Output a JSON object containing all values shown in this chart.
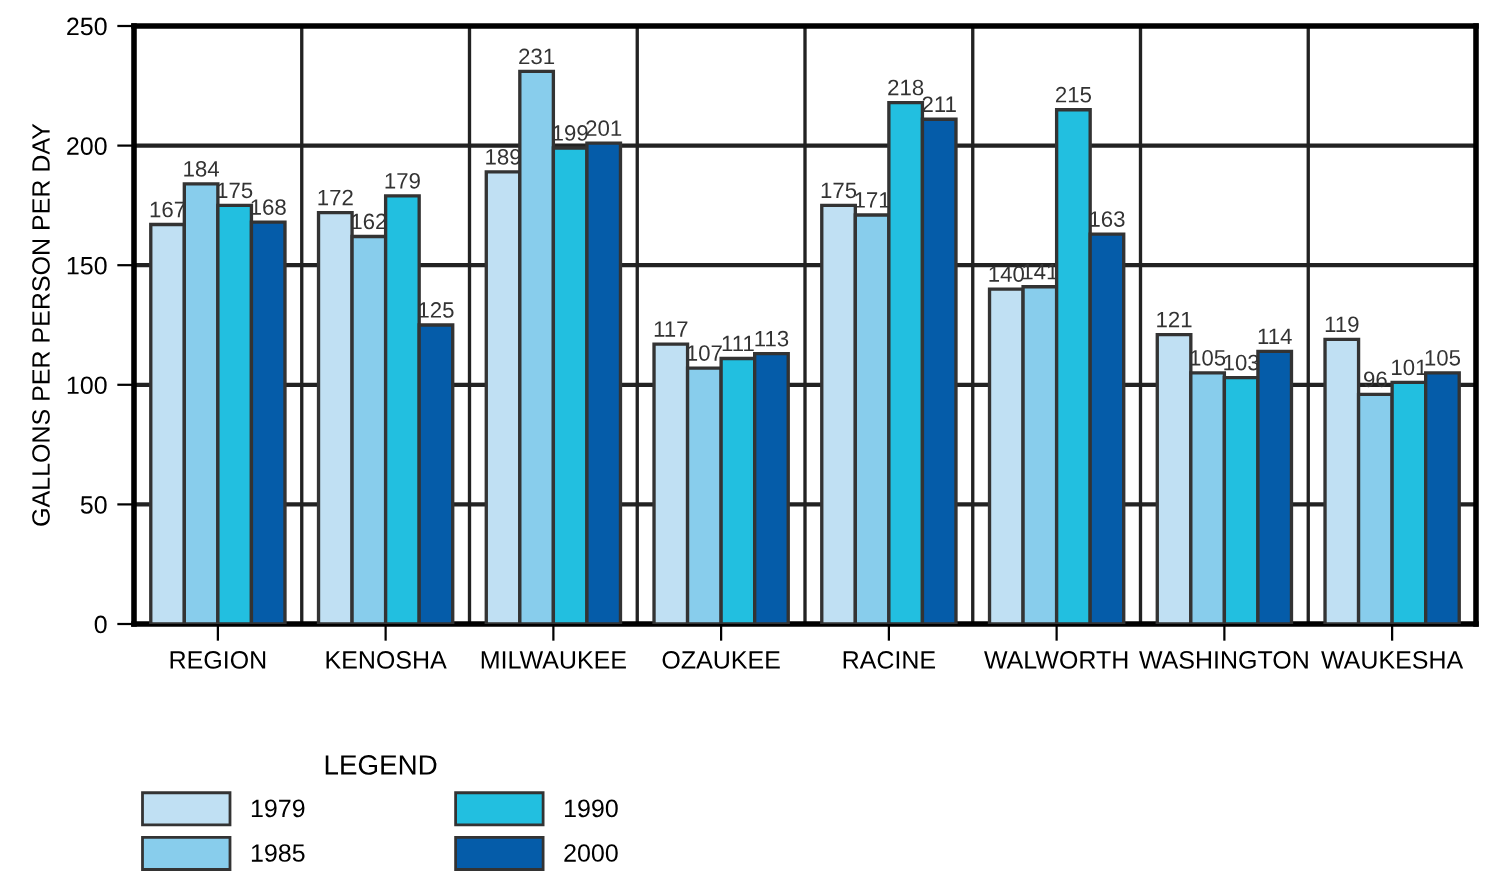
{
  "chart_data": {
    "type": "bar",
    "ylabel": "GALLONS PER PERSON PER DAY",
    "legend_title": "LEGEND",
    "categories": [
      "REGION",
      "KENOSHA",
      "MILWAUKEE",
      "OZAUKEE",
      "RACINE",
      "WALWORTH",
      "WASHINGTON",
      "WAUKESHA"
    ],
    "series": [
      {
        "name": "1979",
        "color": "#c0e0f3",
        "values": [
          167,
          172,
          189,
          117,
          175,
          140,
          121,
          119
        ]
      },
      {
        "name": "1985",
        "color": "#88cdec",
        "values": [
          184,
          162,
          231,
          107,
          171,
          141,
          105,
          96
        ]
      },
      {
        "name": "1990",
        "color": "#22bfe0",
        "values": [
          175,
          179,
          199,
          111,
          218,
          215,
          103,
          101
        ]
      },
      {
        "name": "2000",
        "color": "#055ca9",
        "values": [
          168,
          125,
          201,
          113,
          211,
          163,
          114,
          105
        ]
      }
    ],
    "ylim": [
      0,
      250
    ],
    "yticks": [
      0,
      50,
      100,
      150,
      200,
      250
    ],
    "grid": true,
    "legend": "bottom left",
    "data_labels": true
  }
}
